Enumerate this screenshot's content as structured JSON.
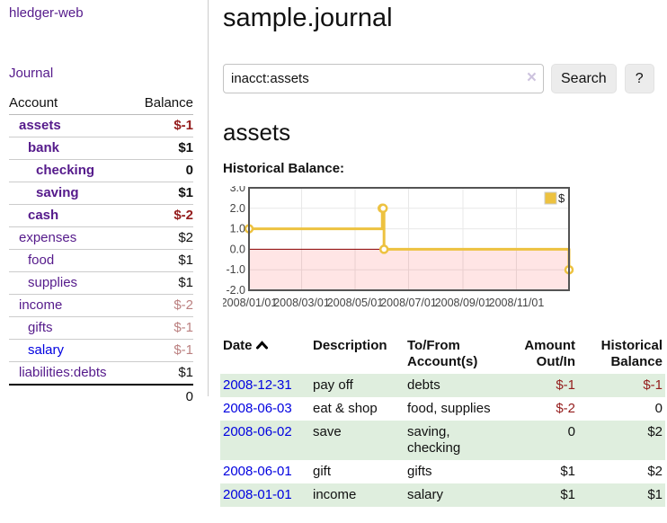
{
  "sidebar": {
    "brand": "hledger-web",
    "journal_label": "Journal",
    "accounts_table": {
      "account_header": "Account",
      "balance_header": "Balance",
      "rows": [
        {
          "name": "assets",
          "depth": 1,
          "bold": true,
          "balance": "$-1",
          "balance_style": "neg-strong"
        },
        {
          "name": "bank",
          "depth": 2,
          "bold": true,
          "balance": "$1",
          "balance_style": "plain"
        },
        {
          "name": "checking",
          "depth": 3,
          "bold": true,
          "balance": "0",
          "balance_style": "plain"
        },
        {
          "name": "saving",
          "depth": 3,
          "bold": true,
          "balance": "$1",
          "balance_style": "plain"
        },
        {
          "name": "cash",
          "depth": 2,
          "bold": true,
          "balance": "$-2",
          "balance_style": "neg-strong"
        },
        {
          "name": "expenses",
          "depth": 1,
          "bold": false,
          "balance": "$2",
          "balance_style": "plain"
        },
        {
          "name": "food",
          "depth": 2,
          "bold": false,
          "balance": "$1",
          "balance_style": "plain"
        },
        {
          "name": "supplies",
          "depth": 2,
          "bold": false,
          "balance": "$1",
          "balance_style": "plain"
        },
        {
          "name": "income",
          "depth": 1,
          "bold": false,
          "balance": "$-2",
          "balance_style": "neg-soft"
        },
        {
          "name": "gifts",
          "depth": 2,
          "bold": false,
          "balance": "$-1",
          "balance_style": "neg-soft"
        },
        {
          "name": "salary",
          "depth": 2,
          "bold": false,
          "link_style": "blue",
          "balance": "$-1",
          "balance_style": "neg-soft"
        },
        {
          "name": "liabilities:debts",
          "depth": 1,
          "bold": false,
          "balance": "$1",
          "balance_style": "plain"
        }
      ],
      "total": "0"
    }
  },
  "main": {
    "title": "sample.journal",
    "search": {
      "value": "inacct:assets",
      "clear_icon": "×",
      "button_label": "Search",
      "help_label": "?"
    },
    "account_heading": "assets",
    "chart_title": "Historical Balance:",
    "register_table": {
      "headers": {
        "date": "Date",
        "description": "Description",
        "accounts": "To/From Account(s)",
        "amount": "Amount Out/In",
        "balance": "Historical Balance"
      },
      "rows": [
        {
          "date": "2008-12-31",
          "description": "pay off",
          "accounts": "debts",
          "amount": "$-1",
          "amount_style": "neg-strong",
          "balance": "$-1",
          "balance_style": "neg-strong"
        },
        {
          "date": "2008-06-03",
          "description": "eat & shop",
          "accounts": "food, supplies",
          "amount": "$-2",
          "amount_style": "neg-strong",
          "balance": "0",
          "balance_style": "plain"
        },
        {
          "date": "2008-06-02",
          "description": "save",
          "accounts": "saving, checking",
          "amount": "0",
          "amount_style": "plain",
          "balance": "$2",
          "balance_style": "plain"
        },
        {
          "date": "2008-06-01",
          "description": "gift",
          "accounts": "gifts",
          "amount": "$1",
          "amount_style": "plain",
          "balance": "$2",
          "balance_style": "plain"
        },
        {
          "date": "2008-01-01",
          "description": "income",
          "accounts": "salary",
          "amount": "$1",
          "amount_style": "plain",
          "balance": "$1",
          "balance_style": "plain"
        }
      ]
    }
  },
  "chart_data": {
    "type": "line",
    "step": true,
    "title": "Historical Balance",
    "legend": "$",
    "legend_position": "top-right",
    "x_start": "2008-01-01",
    "x_end": "2008-12-31",
    "x_ticks": [
      "2008/01/01",
      "2008/03/01",
      "2008/05/01",
      "2008/07/01",
      "2008/09/01",
      "2008/11/01"
    ],
    "y_ticks": [
      3.0,
      2.0,
      1.0,
      0.0,
      -1.0,
      -2.0
    ],
    "ylim": [
      -2,
      3
    ],
    "grid": true,
    "points": [
      [
        "2008-01-01",
        1
      ],
      [
        "2008-06-01",
        2
      ],
      [
        "2008-06-02",
        2
      ],
      [
        "2008-06-03",
        0
      ],
      [
        "2008-12-31",
        -1
      ]
    ],
    "colors": {
      "series": "#EDC240",
      "marker_fill": "#ffffff",
      "negative_region": "rgba(255,0,0,0.10)",
      "zero_line": "#8b0000",
      "gridline": "#e8e8e8",
      "border": "#545454",
      "tick_text": "#444444"
    }
  }
}
